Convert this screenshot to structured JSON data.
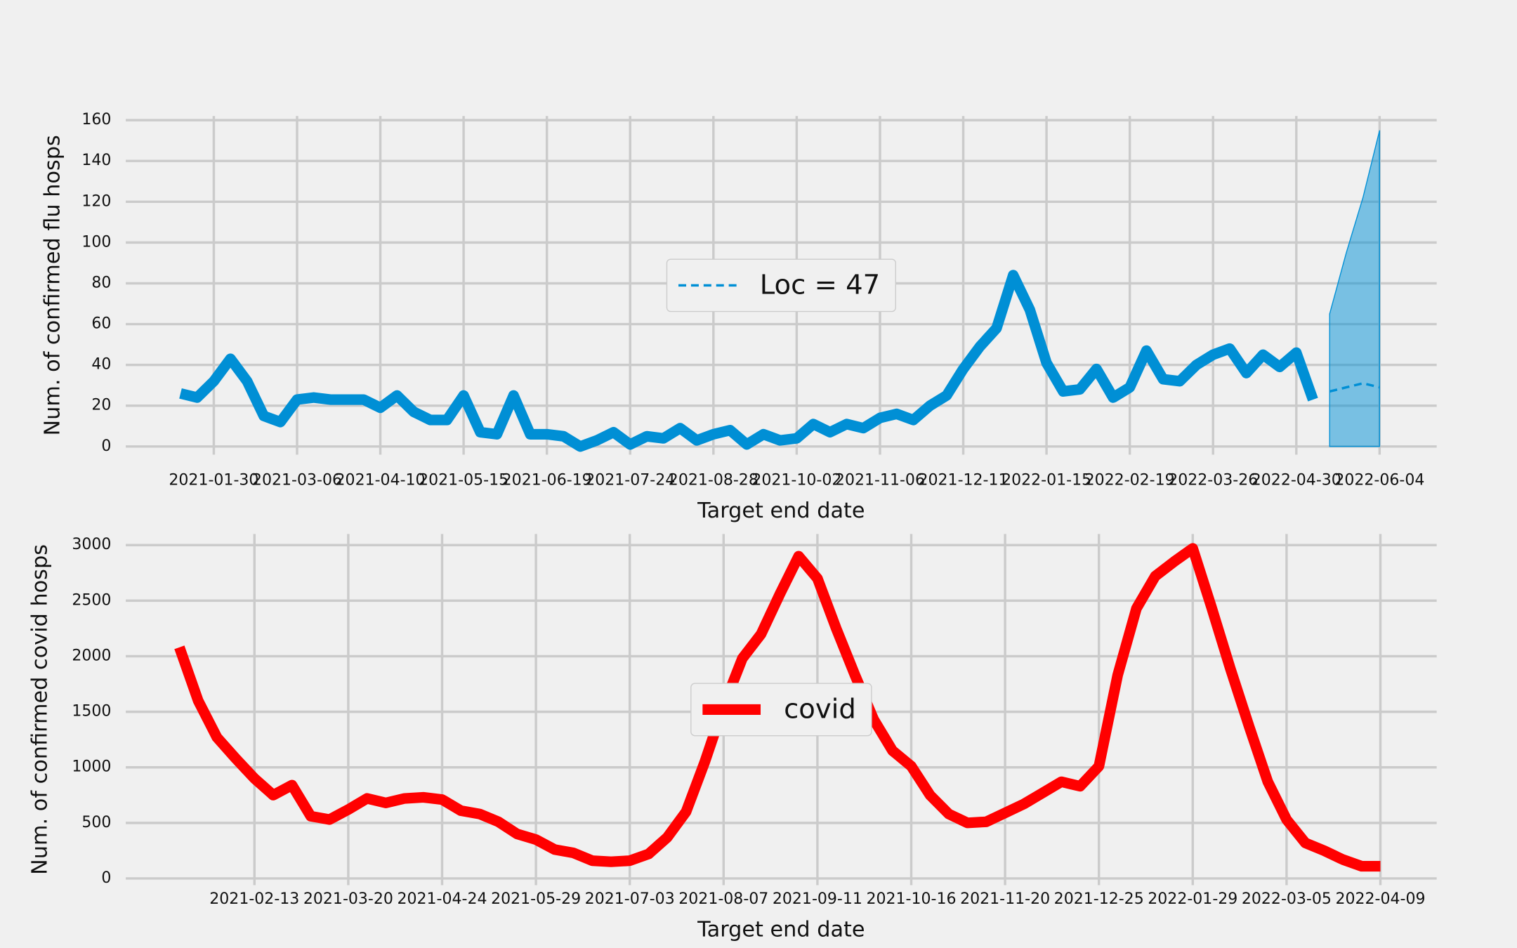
{
  "chart_data": [
    {
      "type": "line",
      "xlabel": "Target end date",
      "ylabel": "Num. of confirmed flu hosps",
      "xlim": [
        "2020-12-24",
        "2022-06-28"
      ],
      "xticks": [
        "2021-01-30",
        "2021-03-06",
        "2021-04-10",
        "2021-05-15",
        "2021-06-19",
        "2021-07-24",
        "2021-08-28",
        "2021-10-02",
        "2021-11-06",
        "2021-12-11",
        "2022-01-15",
        "2022-02-19",
        "2022-03-26",
        "2022-04-30",
        "2022-06-04"
      ],
      "ylim": [
        -4,
        162
      ],
      "yticks": [
        0,
        20,
        40,
        60,
        80,
        100,
        120,
        140,
        160
      ],
      "grid": true,
      "legend": "center",
      "series": [
        {
          "color": "#008fd5",
          "x": [
            "2021-01-16",
            "2021-01-23",
            "2021-01-30",
            "2021-02-06",
            "2021-02-13",
            "2021-02-20",
            "2021-02-27",
            "2021-03-06",
            "2021-03-13",
            "2021-03-20",
            "2021-03-27",
            "2021-04-03",
            "2021-04-10",
            "2021-04-17",
            "2021-04-24",
            "2021-05-01",
            "2021-05-08",
            "2021-05-15",
            "2021-05-22",
            "2021-05-29",
            "2021-06-05",
            "2021-06-12",
            "2021-06-19",
            "2021-06-26",
            "2021-07-03",
            "2021-07-10",
            "2021-07-17",
            "2021-07-24",
            "2021-07-31",
            "2021-08-07",
            "2021-08-14",
            "2021-08-21",
            "2021-08-28",
            "2021-09-04",
            "2021-09-11",
            "2021-09-18",
            "2021-09-25",
            "2021-10-02",
            "2021-10-09",
            "2021-10-16",
            "2021-10-23",
            "2021-10-30",
            "2021-11-06",
            "2021-11-13",
            "2021-11-20",
            "2021-11-27",
            "2021-12-04",
            "2021-12-11",
            "2021-12-18",
            "2021-12-25",
            "2022-01-01",
            "2022-01-08",
            "2022-01-15",
            "2022-01-22",
            "2022-01-29",
            "2022-02-05",
            "2022-02-12",
            "2022-02-19",
            "2022-02-26",
            "2022-03-05",
            "2022-03-12",
            "2022-03-19",
            "2022-03-26",
            "2022-04-02",
            "2022-04-09",
            "2022-04-16",
            "2022-04-23",
            "2022-04-30",
            "2022-05-07"
          ],
          "values": [
            26,
            24,
            32,
            43,
            32,
            15,
            12,
            23,
            24,
            23,
            23,
            23,
            19,
            25,
            17,
            13,
            13,
            25,
            7,
            6,
            25,
            6,
            6,
            5,
            0,
            3,
            7,
            1,
            5,
            4,
            9,
            3,
            6,
            8,
            1,
            6,
            3,
            4,
            11,
            7,
            11,
            9,
            14,
            16,
            13,
            20,
            25,
            38,
            49,
            58,
            84,
            67,
            41,
            27,
            28,
            38,
            24,
            29,
            47,
            33,
            32,
            40,
            45,
            48,
            36,
            45,
            39,
            46,
            23
          ]
        },
        {
          "name": "Loc = 47",
          "color": "#008fd5",
          "dashed": true,
          "x": [
            "2022-05-14",
            "2022-05-21",
            "2022-05-28",
            "2022-06-04"
          ],
          "values": [
            27,
            29,
            31,
            29
          ],
          "lower": [
            0,
            0,
            0,
            0
          ],
          "upper": [
            65,
            95,
            122,
            155
          ]
        }
      ]
    },
    {
      "type": "line",
      "xlabel": "Target end date",
      "ylabel": "Num. of confirmed covid hosps",
      "xlim": [
        "2020-12-27",
        "2022-04-30"
      ],
      "xticks": [
        "2021-02-13",
        "2021-03-20",
        "2021-04-24",
        "2021-05-29",
        "2021-07-03",
        "2021-08-07",
        "2021-09-11",
        "2021-10-16",
        "2021-11-20",
        "2021-12-25",
        "2022-01-29",
        "2022-03-05",
        "2022-04-09"
      ],
      "ylim": [
        -60,
        3100
      ],
      "yticks": [
        0,
        500,
        1000,
        1500,
        2000,
        2500,
        3000
      ],
      "grid": true,
      "legend": "center",
      "series": [
        {
          "name": "covid",
          "color": "#ff0000",
          "x": [
            "2021-01-16",
            "2021-01-23",
            "2021-01-30",
            "2021-02-06",
            "2021-02-13",
            "2021-02-20",
            "2021-02-27",
            "2021-03-06",
            "2021-03-13",
            "2021-03-20",
            "2021-03-27",
            "2021-04-03",
            "2021-04-10",
            "2021-04-17",
            "2021-04-24",
            "2021-05-01",
            "2021-05-08",
            "2021-05-15",
            "2021-05-22",
            "2021-05-29",
            "2021-06-05",
            "2021-06-12",
            "2021-06-19",
            "2021-06-26",
            "2021-07-03",
            "2021-07-10",
            "2021-07-17",
            "2021-07-24",
            "2021-07-31",
            "2021-08-07",
            "2021-08-14",
            "2021-08-21",
            "2021-08-28",
            "2021-09-04",
            "2021-09-11",
            "2021-09-18",
            "2021-09-25",
            "2021-10-02",
            "2021-10-09",
            "2021-10-16",
            "2021-10-23",
            "2021-10-30",
            "2021-11-06",
            "2021-11-13",
            "2021-11-20",
            "2021-11-27",
            "2021-12-04",
            "2021-12-11",
            "2021-12-18",
            "2021-12-25",
            "2022-01-01",
            "2022-01-08",
            "2022-01-15",
            "2022-01-22",
            "2022-01-29",
            "2022-02-05",
            "2022-02-12",
            "2022-02-19",
            "2022-02-26",
            "2022-03-05",
            "2022-03-12",
            "2022-03-19",
            "2022-03-26",
            "2022-04-02",
            "2022-04-09"
          ],
          "values": [
            2080,
            1600,
            1270,
            1080,
            900,
            750,
            840,
            560,
            530,
            620,
            720,
            680,
            720,
            730,
            710,
            610,
            580,
            510,
            400,
            350,
            260,
            230,
            160,
            150,
            160,
            220,
            370,
            600,
            1050,
            1550,
            1980,
            2200,
            2560,
            2900,
            2700,
            2250,
            1830,
            1430,
            1150,
            1010,
            750,
            580,
            500,
            510,
            590,
            670,
            770,
            870,
            830,
            1010,
            1830,
            2430,
            2720,
            2850,
            2970,
            2440,
            1890,
            1370,
            870,
            530,
            320,
            250,
            170,
            110,
            110
          ]
        }
      ]
    }
  ]
}
